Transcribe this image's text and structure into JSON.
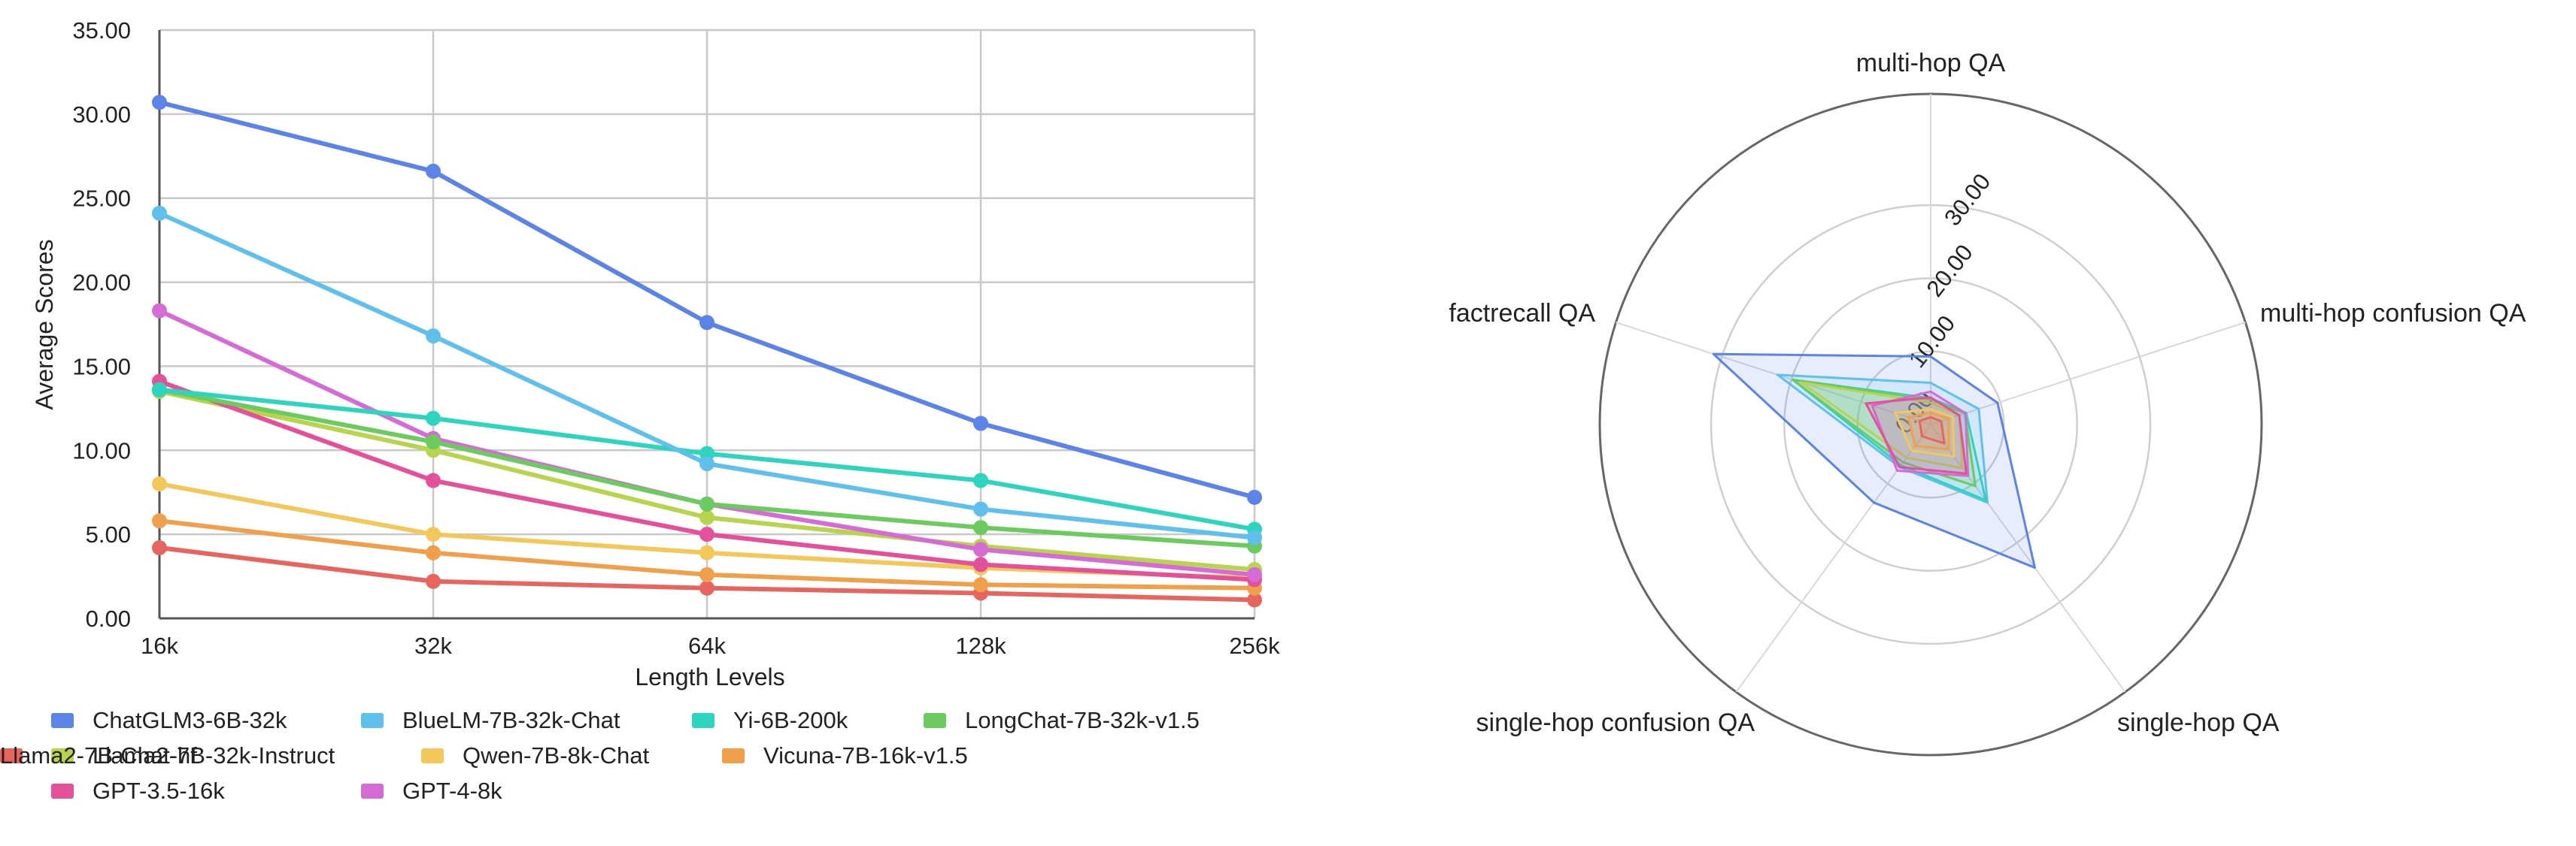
{
  "line_chart": {
    "xlabel": "Length Levels",
    "ylabel": "Average Scores",
    "y_ticks": [
      "0.00",
      "5.00",
      "10.00",
      "15.00",
      "20.00",
      "25.00",
      "30.00",
      "35.00"
    ]
  },
  "radar_chart": {
    "r_ticks": [
      "0.00",
      "10.00",
      "20.00",
      "30.00"
    ]
  },
  "chart_data": [
    {
      "type": "line",
      "title": "",
      "xlabel": "Length Levels",
      "ylabel": "Average Scores",
      "categories": [
        "16k",
        "32k",
        "64k",
        "128k",
        "256k"
      ],
      "ylim": [
        0,
        35
      ],
      "grid": true,
      "legend": "bottom",
      "series": [
        {
          "name": "ChatGLM3-6B-32k",
          "color": "#5B83E8",
          "values": [
            30.7,
            26.6,
            17.6,
            11.6,
            7.2
          ]
        },
        {
          "name": "BlueLM-7B-32k-Chat",
          "color": "#5FC1EB",
          "values": [
            24.1,
            16.8,
            9.2,
            6.5,
            4.8
          ]
        },
        {
          "name": "Yi-6B-200k",
          "color": "#2DD4BE",
          "values": [
            13.6,
            11.9,
            9.8,
            8.2,
            5.3
          ]
        },
        {
          "name": "LongChat-7B-32k-v1.5",
          "color": "#6BCB5E",
          "values": [
            13.6,
            10.5,
            6.8,
            5.4,
            4.3
          ]
        },
        {
          "name": "Llama2-7B-32k-Instruct",
          "color": "#B8D44C",
          "values": [
            13.5,
            10.0,
            6.0,
            4.3,
            2.9
          ]
        },
        {
          "name": "Qwen-7B-8k-Chat",
          "color": "#F2C85B",
          "values": [
            8.0,
            5.0,
            3.9,
            3.0,
            2.4
          ]
        },
        {
          "name": "Vicuna-7B-16k-v1.5",
          "color": "#F0A04A",
          "values": [
            5.8,
            3.9,
            2.6,
            2.0,
            1.8
          ]
        },
        {
          "name": "Llama2-7B-Chat-hf",
          "color": "#E8655F",
          "values": [
            4.2,
            2.2,
            1.8,
            1.5,
            1.1
          ]
        },
        {
          "name": "GPT-3.5-16k",
          "color": "#E5509A",
          "values": [
            14.1,
            8.2,
            5.0,
            3.2,
            2.3
          ]
        },
        {
          "name": "GPT-4-8k",
          "color": "#D56CD6",
          "values": [
            18.3,
            10.7,
            6.8,
            4.1,
            2.6
          ]
        }
      ]
    },
    {
      "type": "radar",
      "title": "",
      "axes": [
        "multi-hop QA",
        "multi-hop confusion QA",
        "single-hop QA",
        "single-hop confusion QA",
        "factrecall QA"
      ],
      "rlim": [
        0,
        30
      ],
      "r_ticks": [
        "0.00",
        "10.00",
        "20.00",
        "30.00"
      ],
      "series": [
        {
          "name": "ChatGLM3-6B-32k",
          "color": "#5B83E8",
          "values": [
            9.3,
            9.6,
            24.2,
            13.2,
            31.2
          ]
        },
        {
          "name": "BlueLM-7B-32k-Chat",
          "color": "#5FC1EB",
          "values": [
            5.7,
            6.9,
            13.2,
            7.2,
            22.0
          ]
        },
        {
          "name": "Yi-6B-200k",
          "color": "#2DD4BE",
          "values": [
            3.6,
            5.1,
            12.8,
            6.9,
            19.8
          ]
        },
        {
          "name": "LongChat-7B-32k-v1.5",
          "color": "#6BCB5E",
          "values": [
            3.4,
            4.9,
            10.4,
            6.4,
            19.8
          ]
        },
        {
          "name": "Llama2-7B-32k-Instruct",
          "color": "#B8D44C",
          "values": [
            3.0,
            4.1,
            7.4,
            5.6,
            18.6
          ]
        },
        {
          "name": "Qwen-7B-8k-Chat",
          "color": "#F2C85B",
          "values": [
            2.1,
            3.2,
            5.4,
            4.4,
            5.1
          ]
        },
        {
          "name": "Vicuna-7B-16k-v1.5",
          "color": "#F0A04A",
          "values": [
            1.6,
            2.6,
            4.2,
            3.6,
            3.2
          ]
        },
        {
          "name": "Llama2-7B-Chat-hf",
          "color": "#E8655F",
          "values": [
            1.0,
            1.5,
            3.2,
            2.0,
            1.6
          ]
        },
        {
          "name": "GPT-3.5-16k",
          "color": "#E5509A",
          "values": [
            3.7,
            4.1,
            8.3,
            7.2,
            9.3
          ]
        },
        {
          "name": "GPT-4-8k",
          "color": "#D56CD6",
          "values": [
            4.5,
            5.0,
            8.7,
            7.8,
            8.4
          ]
        }
      ]
    }
  ]
}
